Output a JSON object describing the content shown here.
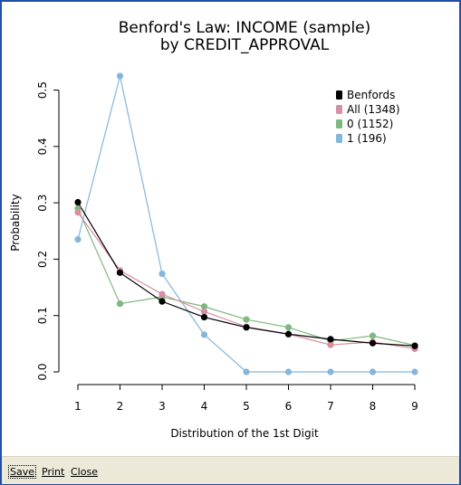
{
  "chart_data": {
    "type": "line",
    "title": [
      "Benford's Law: INCOME (sample)",
      "by CREDIT_APPROVAL"
    ],
    "xlabel": "Distribution of the 1st Digit",
    "ylabel": "Probability",
    "x": [
      1,
      2,
      3,
      4,
      5,
      6,
      7,
      8,
      9
    ],
    "xlim": [
      1,
      9
    ],
    "ylim": [
      0,
      0.525
    ],
    "yticks": [
      0.0,
      0.1,
      0.2,
      0.3,
      0.4,
      0.5
    ],
    "ytick_labels": [
      "0.0",
      "0.1",
      "0.2",
      "0.3",
      "0.4",
      "0.5"
    ],
    "xtick_labels": [
      "1",
      "2",
      "3",
      "4",
      "5",
      "6",
      "7",
      "8",
      "9"
    ],
    "legend_position": "top-right",
    "grid": false,
    "series": [
      {
        "name": "Benfords",
        "color": "#000000",
        "values": [
          0.301,
          0.176,
          0.125,
          0.097,
          0.079,
          0.067,
          0.058,
          0.051,
          0.046
        ]
      },
      {
        "name": "All (1348)",
        "color": "#d98fa3",
        "values": [
          0.283,
          0.18,
          0.138,
          0.107,
          0.08,
          0.067,
          0.048,
          0.053,
          0.041
        ]
      },
      {
        "name": "0 (1152)",
        "color": "#7fb77e",
        "values": [
          0.29,
          0.121,
          0.133,
          0.116,
          0.093,
          0.079,
          0.055,
          0.064,
          0.047
        ]
      },
      {
        "name": "1 (196)",
        "color": "#84b6db",
        "values": [
          0.235,
          0.525,
          0.174,
          0.066,
          0.0,
          0.0,
          0.0,
          0.0,
          0.0
        ]
      }
    ]
  },
  "toolbar": {
    "save_label": "Save",
    "print_label": "Print",
    "close_label": "Close"
  }
}
